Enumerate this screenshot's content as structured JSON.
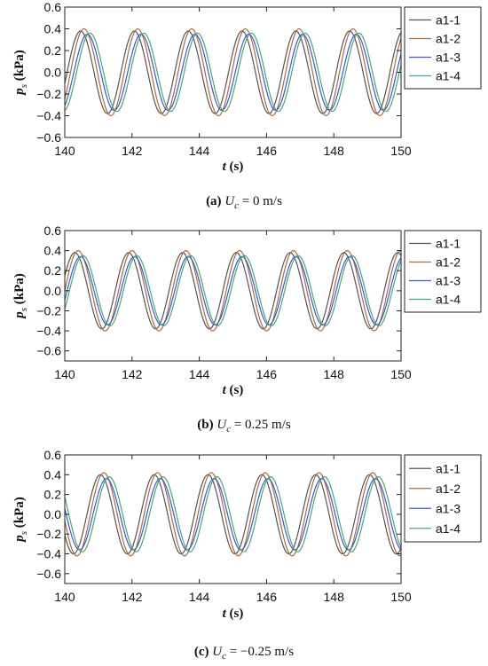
{
  "chart_data": [
    {
      "type": "line",
      "panel": "a",
      "caption": {
        "letter": "(a)",
        "var": "U",
        "sub": "c",
        "value": "= 0 m/s"
      },
      "xlabel": {
        "var": "t",
        "unit": "(s)"
      },
      "ylabel": {
        "var": "p",
        "sub": "s",
        "unit": "(kPa)"
      },
      "xlim": [
        140,
        150
      ],
      "ylim": [
        -0.6,
        0.6
      ],
      "xticks": [
        140,
        142,
        144,
        146,
        148,
        150
      ],
      "yticks": [
        -0.6,
        -0.4,
        -0.2,
        0.0,
        0.2,
        0.4,
        0.6
      ],
      "ytick_labels": [
        "−0.6",
        "−0.4",
        "−0.2",
        "0.0",
        "0.2",
        "0.4",
        "0.6"
      ],
      "legend_position": "right",
      "grid": false,
      "wave": {
        "period": 1.6,
        "first_peak": 140.47
      },
      "series": [
        {
          "name": "a1-1",
          "color": "#555555",
          "amplitude": 0.38,
          "phase_shift": 0.0
        },
        {
          "name": "a1-2",
          "color": "#b06a3a",
          "amplitude": 0.4,
          "phase_shift": 0.1
        },
        {
          "name": "a1-3",
          "color": "#4455cc",
          "amplitude": 0.35,
          "phase_shift": 0.2
        },
        {
          "name": "a1-4",
          "color": "#44aa77",
          "amplitude": 0.36,
          "phase_shift": 0.28
        }
      ]
    },
    {
      "type": "line",
      "panel": "b",
      "caption": {
        "letter": "(b)",
        "var": "U",
        "sub": "c",
        "value": "= 0.25 m/s"
      },
      "xlabel": {
        "var": "t",
        "unit": "(s)"
      },
      "ylabel": {
        "var": "p",
        "sub": "s",
        "unit": "(kPa)"
      },
      "xlim": [
        140,
        150
      ],
      "ylim": [
        -0.7,
        0.6
      ],
      "xticks": [
        140,
        142,
        144,
        146,
        148,
        150
      ],
      "yticks": [
        -0.6,
        -0.4,
        -0.2,
        0.0,
        0.2,
        0.4,
        0.6
      ],
      "ytick_labels": [
        "−0.6",
        "−0.4",
        "−0.2",
        "0.0",
        "0.2",
        "0.4",
        "0.6"
      ],
      "legend_position": "right",
      "grid": false,
      "wave": {
        "period": 1.6,
        "first_peak": 140.3
      },
      "series": [
        {
          "name": "a1-1",
          "color": "#555555",
          "amplitude": 0.38,
          "phase_shift": 0.0
        },
        {
          "name": "a1-2",
          "color": "#b06a3a",
          "amplitude": 0.4,
          "phase_shift": 0.1
        },
        {
          "name": "a1-3",
          "color": "#4455cc",
          "amplitude": 0.34,
          "phase_shift": 0.17
        },
        {
          "name": "a1-4",
          "color": "#44aa77",
          "amplitude": 0.35,
          "phase_shift": 0.24
        }
      ]
    },
    {
      "type": "line",
      "panel": "c",
      "caption": {
        "letter": "(c)",
        "var": "U",
        "sub": "c",
        "value": "= −0.25 m/s"
      },
      "xlabel": {
        "var": "t",
        "unit": "(s)"
      },
      "ylabel": {
        "var": "p",
        "sub": "s",
        "unit": "(kPa)"
      },
      "xlim": [
        140,
        150
      ],
      "ylim": [
        -0.7,
        0.6
      ],
      "xticks": [
        140,
        142,
        144,
        146,
        148,
        150
      ],
      "yticks": [
        -0.6,
        -0.4,
        -0.2,
        0.0,
        0.2,
        0.4,
        0.6
      ],
      "ytick_labels": [
        "−0.6",
        "−0.4",
        "−0.2",
        "0.0",
        "0.2",
        "0.4",
        "0.6"
      ],
      "legend_position": "right",
      "grid": false,
      "wave": {
        "period": 1.6,
        "first_peak": 141.06
      },
      "series": [
        {
          "name": "a1-1",
          "color": "#555555",
          "amplitude": 0.4,
          "phase_shift": 0.0
        },
        {
          "name": "a1-2",
          "color": "#b06a3a",
          "amplitude": 0.42,
          "phase_shift": 0.1
        },
        {
          "name": "a1-3",
          "color": "#4455cc",
          "amplitude": 0.36,
          "phase_shift": 0.18
        },
        {
          "name": "a1-4",
          "color": "#44aa77",
          "amplitude": 0.38,
          "phase_shift": 0.26
        }
      ]
    }
  ]
}
